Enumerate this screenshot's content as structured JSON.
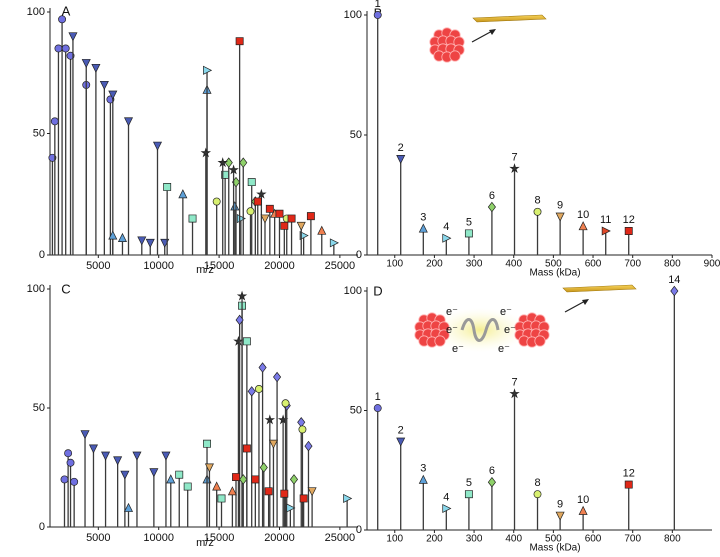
{
  "chart_data": [
    {
      "type": "stick",
      "title": "A",
      "x_label": "m/z",
      "xlim": [
        1000,
        26500
      ],
      "xticks": [
        5000,
        10000,
        15000,
        20000,
        25000
      ],
      "ylim": [
        0,
        100
      ],
      "yticks": [
        0,
        50,
        100
      ],
      "series": [
        {
          "marker": "circle",
          "color": "#6f6fe0",
          "x": [
            1200,
            1400,
            1700,
            2000,
            2300,
            2700,
            4000,
            6000
          ],
          "values": [
            40,
            55,
            85,
            97,
            85,
            82,
            70,
            64
          ]
        },
        {
          "marker": "triangle-down",
          "color": "#4a5bb5",
          "x": [
            2900,
            4000,
            4800,
            5500,
            6200,
            7500,
            9900,
            8600,
            9300,
            10500
          ],
          "values": [
            90,
            79,
            77,
            70,
            66,
            55,
            45,
            6,
            5,
            5
          ]
        },
        {
          "marker": "triangle-up",
          "color": "#5ea0d8",
          "x": [
            12000,
            14000,
            16300,
            6200,
            7000
          ],
          "values": [
            25,
            68,
            20,
            8,
            7
          ]
        },
        {
          "marker": "triangle-right",
          "color": "#8ad8ec",
          "x": [
            14000,
            16800,
            22000,
            24500
          ],
          "values": [
            76,
            15,
            8,
            5
          ]
        },
        {
          "marker": "square",
          "color": "#8fe8c8",
          "x": [
            10700,
            12800,
            15500,
            17700
          ],
          "values": [
            28,
            15,
            33,
            30
          ]
        },
        {
          "marker": "diamond",
          "color": "#8fd16a",
          "x": [
            15800,
            17000,
            16400,
            18000
          ],
          "values": [
            38,
            38,
            30,
            22
          ]
        },
        {
          "marker": "star",
          "color": "#333333",
          "x": [
            13900,
            15300,
            16200,
            18500
          ],
          "values": [
            42,
            38,
            35,
            25
          ]
        },
        {
          "marker": "circle",
          "color": "#d8f070",
          "x": [
            14800,
            17600,
            20600
          ],
          "values": [
            22,
            18,
            15
          ]
        },
        {
          "marker": "triangle-down",
          "color": "#e0a860",
          "x": [
            18800,
            21800
          ],
          "values": [
            15,
            12
          ]
        },
        {
          "marker": "triangle-up",
          "color": "#f08050",
          "x": [
            19600,
            23500
          ],
          "values": [
            17,
            10
          ]
        },
        {
          "marker": "square",
          "color": "#e02818",
          "x": [
            16700,
            18200,
            19200,
            20000,
            21000,
            22600,
            20400
          ],
          "values": [
            88,
            22,
            19,
            17,
            15,
            16,
            12
          ]
        }
      ]
    },
    {
      "type": "stick",
      "title": "B",
      "x_label": "Mass (kDa)",
      "xlim": [
        30,
        900
      ],
      "xticks": [
        100,
        200,
        300,
        400,
        500,
        600,
        700,
        800,
        900
      ],
      "ylim": [
        0,
        100
      ],
      "yticks": [
        0,
        50,
        100
      ],
      "series": [
        {
          "name": "1",
          "marker": "circle",
          "color": "#6f6fe0",
          "x": [
            57
          ],
          "values": [
            100
          ]
        },
        {
          "name": "2",
          "marker": "triangle-down",
          "color": "#4a5bb5",
          "x": [
            115
          ],
          "values": [
            40
          ]
        },
        {
          "name": "3",
          "marker": "triangle-up",
          "color": "#5ea0d8",
          "x": [
            172
          ],
          "values": [
            11
          ]
        },
        {
          "name": "4",
          "marker": "triangle-right",
          "color": "#8ad8ec",
          "x": [
            230
          ],
          "values": [
            7
          ]
        },
        {
          "name": "5",
          "marker": "square",
          "color": "#8fe8c8",
          "x": [
            287
          ],
          "values": [
            9
          ]
        },
        {
          "name": "6",
          "marker": "diamond",
          "color": "#8fd16a",
          "x": [
            345
          ],
          "values": [
            20
          ]
        },
        {
          "name": "7",
          "marker": "star",
          "color": "#333333",
          "x": [
            402
          ],
          "values": [
            36
          ]
        },
        {
          "name": "8",
          "marker": "circle",
          "color": "#d8f070",
          "x": [
            460
          ],
          "values": [
            18
          ]
        },
        {
          "name": "9",
          "marker": "triangle-down",
          "color": "#e0a860",
          "x": [
            517
          ],
          "values": [
            16
          ]
        },
        {
          "name": "10",
          "marker": "triangle-up",
          "color": "#f08050",
          "x": [
            575
          ],
          "values": [
            12
          ]
        },
        {
          "name": "11",
          "marker": "triangle-right",
          "color": "#e04828",
          "x": [
            632
          ],
          "values": [
            10
          ]
        },
        {
          "name": "12",
          "marker": "square",
          "color": "#e02818",
          "x": [
            690
          ],
          "values": [
            10
          ]
        }
      ]
    },
    {
      "type": "stick",
      "title": "C",
      "x_label": "m/z",
      "xlim": [
        1000,
        26500
      ],
      "xticks": [
        5000,
        10000,
        15000,
        20000,
        25000
      ],
      "ylim": [
        0,
        100
      ],
      "yticks": [
        0,
        50,
        100
      ],
      "series": [
        {
          "marker": "circle",
          "color": "#6f6fe0",
          "x": [
            2200,
            2500,
            2700,
            3000
          ],
          "values": [
            20,
            31,
            27,
            19
          ]
        },
        {
          "marker": "triangle-down",
          "color": "#4a5bb5",
          "x": [
            3900,
            4600,
            5600,
            6600,
            8200,
            10600,
            9600,
            7200
          ],
          "values": [
            39,
            33,
            30,
            28,
            30,
            30,
            23,
            22
          ]
        },
        {
          "marker": "triangle-up",
          "color": "#5ea0d8",
          "x": [
            11000,
            14000,
            7500
          ],
          "values": [
            20,
            20,
            8
          ]
        },
        {
          "marker": "square",
          "color": "#8fe8c8",
          "x": [
            14000,
            16900,
            17300,
            11700,
            12400,
            15200
          ],
          "values": [
            35,
            93,
            78,
            22,
            17,
            12
          ]
        },
        {
          "marker": "star",
          "color": "#333333",
          "x": [
            16600,
            16900,
            19200,
            20300
          ],
          "values": [
            78,
            97,
            45,
            45
          ]
        },
        {
          "marker": "diamond",
          "color": "#7a7ae8",
          "x": [
            16700,
            17700,
            18600,
            19800,
            20600,
            21800,
            22400
          ],
          "values": [
            87,
            57,
            67,
            63,
            51,
            44,
            34
          ]
        },
        {
          "marker": "circle",
          "color": "#d8f070",
          "x": [
            18300,
            20500,
            21900
          ],
          "values": [
            58,
            52,
            41
          ]
        },
        {
          "marker": "diamond",
          "color": "#8fd16a",
          "x": [
            17000,
            18700,
            21200
          ],
          "values": [
            20,
            25,
            20
          ]
        },
        {
          "marker": "triangle-down",
          "color": "#e0a860",
          "x": [
            19500,
            22700,
            14200
          ],
          "values": [
            35,
            15,
            25
          ]
        },
        {
          "marker": "square",
          "color": "#e02818",
          "x": [
            16400,
            17300,
            18000,
            19100,
            20400,
            22000
          ],
          "values": [
            21,
            33,
            20,
            15,
            14,
            12
          ]
        },
        {
          "marker": "triangle-up",
          "color": "#f08050",
          "x": [
            14800,
            16100
          ],
          "values": [
            17,
            15
          ]
        },
        {
          "marker": "triangle-right",
          "color": "#8ad8ec",
          "x": [
            25600,
            20900
          ],
          "values": [
            12,
            8
          ]
        }
      ]
    },
    {
      "type": "stick",
      "title": "D",
      "x_label": "Mass (kDa)",
      "xlim": [
        30,
        900
      ],
      "xticks": [
        100,
        200,
        300,
        400,
        500,
        600,
        700,
        800
      ],
      "ylim": [
        0,
        100
      ],
      "yticks": [
        0,
        50,
        100
      ],
      "annotations": [
        "e⁻",
        "e⁻",
        "e⁻",
        "e⁻",
        "e⁻",
        "e⁻"
      ],
      "series": [
        {
          "name": "1",
          "marker": "circle",
          "color": "#6f6fe0",
          "x": [
            57
          ],
          "values": [
            51
          ]
        },
        {
          "name": "2",
          "marker": "triangle-down",
          "color": "#4a5bb5",
          "x": [
            115
          ],
          "values": [
            37
          ]
        },
        {
          "name": "3",
          "marker": "triangle-up",
          "color": "#5ea0d8",
          "x": [
            172
          ],
          "values": [
            21
          ]
        },
        {
          "name": "4",
          "marker": "triangle-right",
          "color": "#8ad8ec",
          "x": [
            230
          ],
          "values": [
            9
          ]
        },
        {
          "name": "5",
          "marker": "square",
          "color": "#8fe8c8",
          "x": [
            287
          ],
          "values": [
            15
          ]
        },
        {
          "name": "6",
          "marker": "diamond",
          "color": "#8fd16a",
          "x": [
            345
          ],
          "values": [
            20
          ]
        },
        {
          "name": "7",
          "marker": "star",
          "color": "#333333",
          "x": [
            402
          ],
          "values": [
            57
          ]
        },
        {
          "name": "8",
          "marker": "circle",
          "color": "#d8f070",
          "x": [
            460
          ],
          "values": [
            15
          ]
        },
        {
          "name": "9",
          "marker": "triangle-down",
          "color": "#e0a860",
          "x": [
            517
          ],
          "values": [
            6
          ]
        },
        {
          "name": "10",
          "marker": "triangle-up",
          "color": "#f08050",
          "x": [
            575
          ],
          "values": [
            8
          ]
        },
        {
          "name": "12",
          "marker": "square",
          "color": "#e02818",
          "x": [
            690
          ],
          "values": [
            19
          ]
        },
        {
          "name": "14",
          "marker": "diamond",
          "color": "#7a7ae8",
          "x": [
            805
          ],
          "values": [
            100
          ]
        }
      ]
    }
  ]
}
